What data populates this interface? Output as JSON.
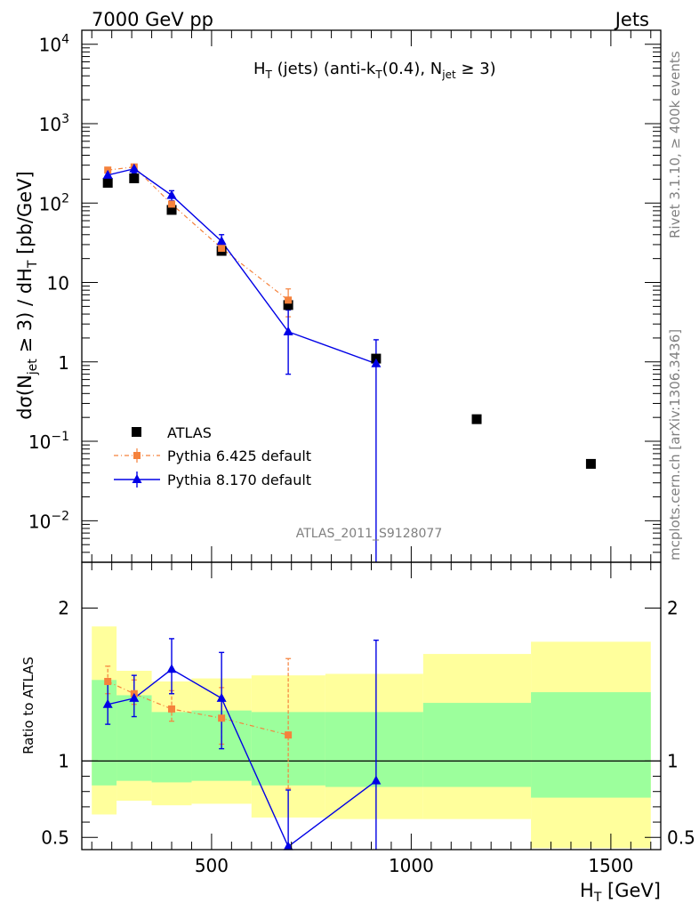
{
  "header": {
    "left": "7000 GeV pp",
    "right": "Jets"
  },
  "side_text": {
    "rivet": "Rivet 3.1.10, ≥ 400k events",
    "mcplots": "mcplots.cern.ch [arXiv:1306.3436]"
  },
  "colors": {
    "data": "#000000",
    "pythia6": "#f5823c",
    "pythia8": "#0000e6",
    "band_outer": "#ffff9c",
    "band_inner": "#9cff9c"
  },
  "chart_data": [
    {
      "type": "scatter",
      "yscale": "log",
      "title": "H_T (jets) (anti-k_T(0.4), N_jet ≥ 3)",
      "title_parts": {
        "H": "H",
        "T": "T",
        "mid": " (jets) (anti-k",
        "R": "(0.4), N",
        "jet": "jet",
        "ge3": " ≥ 3)"
      },
      "ylabel_parts": {
        "a": "dσ(N",
        "jet": "jet",
        "b": " ≥ 3) / dH",
        "T": "T",
        "c": " [pb/GeV]"
      },
      "xlim": [
        175,
        1625
      ],
      "ylim": [
        0.003,
        15000
      ],
      "yticks": [
        {
          "value": 10000,
          "base": "10",
          "exp": "4"
        },
        {
          "value": 1000,
          "base": "10",
          "exp": "3"
        },
        {
          "value": 100,
          "base": "10",
          "exp": "2"
        },
        {
          "value": 10,
          "base": "10",
          "exp": ""
        },
        {
          "value": 1,
          "base": "1",
          "exp": ""
        },
        {
          "value": 0.1,
          "base": "10",
          "exp": "−1"
        },
        {
          "value": 0.01,
          "base": "10",
          "exp": "−2"
        }
      ],
      "watermark": "ATLAS_2011_S9128077",
      "legend_position": "lower-left",
      "series": [
        {
          "name": "ATLAS",
          "marker": "square",
          "x": [
            240,
            306,
            400,
            525,
            692,
            912,
            1164,
            1450
          ],
          "y": [
            180,
            205,
            82,
            25,
            5.2,
            1.1,
            0.19,
            0.052
          ]
        },
        {
          "name": "Pythia 6.425 default",
          "marker": "square-small",
          "line": "dash-dot",
          "x": [
            240,
            306,
            400,
            525,
            692
          ],
          "y": [
            260,
            285,
            97,
            27,
            6.0
          ],
          "yerr": [
            20,
            20,
            10,
            4,
            2.3
          ]
        },
        {
          "name": "Pythia 8.170 default",
          "marker": "triangle",
          "line": "solid",
          "x": [
            240,
            306,
            400,
            525,
            692,
            912
          ],
          "y": [
            225,
            270,
            125,
            33,
            2.4,
            0.95
          ],
          "yerr_low": [
            30,
            30,
            18,
            7,
            1.7,
            0.95
          ],
          "yerr_high": [
            30,
            30,
            18,
            7,
            2.1,
            0.95
          ]
        }
      ]
    },
    {
      "type": "line",
      "ylabel": "Ratio to ATLAS",
      "xlabel_parts": {
        "H": "H",
        "T": "T",
        "unit": " [GeV]"
      },
      "xlim": [
        175,
        1625
      ],
      "ylim": [
        0.42,
        2.3
      ],
      "xticks": [
        {
          "value": 500,
          "label": "500"
        },
        {
          "value": 1000,
          "label": "1000"
        },
        {
          "value": 1500,
          "label": "1500"
        }
      ],
      "yticks": [
        {
          "value": 2,
          "label": "2"
        },
        {
          "value": 1,
          "label": "1"
        },
        {
          "value": 0.5,
          "label": "0.5"
        }
      ],
      "bands": [
        {
          "x0": 200,
          "x1": 262,
          "outer": [
            0.65,
            1.88
          ],
          "inner": [
            0.84,
            1.53
          ]
        },
        {
          "x0": 262,
          "x1": 350,
          "outer": [
            0.74,
            1.59
          ],
          "inner": [
            0.87,
            1.43
          ]
        },
        {
          "x0": 350,
          "x1": 450,
          "outer": [
            0.71,
            1.52
          ],
          "inner": [
            0.86,
            1.32
          ]
        },
        {
          "x0": 450,
          "x1": 600,
          "outer": [
            0.72,
            1.54
          ],
          "inner": [
            0.87,
            1.33
          ]
        },
        {
          "x0": 600,
          "x1": 785,
          "outer": [
            0.63,
            1.56
          ],
          "inner": [
            0.84,
            1.32
          ]
        },
        {
          "x0": 785,
          "x1": 1030,
          "outer": [
            0.62,
            1.57
          ],
          "inner": [
            0.83,
            1.32
          ]
        },
        {
          "x0": 1030,
          "x1": 1300,
          "outer": [
            0.62,
            1.7
          ],
          "inner": [
            0.83,
            1.38
          ]
        },
        {
          "x0": 1300,
          "x1": 1600,
          "outer": [
            0.43,
            1.78
          ],
          "inner": [
            0.76,
            1.45
          ]
        }
      ],
      "series": [
        {
          "name": "Pythia 6.425 default",
          "x": [
            240,
            306,
            400,
            525,
            692
          ],
          "y": [
            1.52,
            1.44,
            1.34,
            1.28,
            1.17
          ],
          "yerr_low": [
            0.08,
            0.07,
            0.08,
            0.17,
            0.35
          ],
          "yerr_high": [
            0.1,
            0.09,
            0.12,
            0.2,
            0.5
          ]
        },
        {
          "name": "Pythia 8.170 default",
          "x": [
            240,
            306,
            400,
            525,
            692,
            912
          ],
          "y": [
            1.37,
            1.41,
            1.6,
            1.41,
            0.44,
            0.87
          ],
          "yerr_low": [
            0.13,
            0.12,
            0.16,
            0.33,
            0.2,
            0.87
          ],
          "yerr_high": [
            0.16,
            0.15,
            0.2,
            0.3,
            0.37,
            0.92
          ]
        }
      ]
    }
  ]
}
